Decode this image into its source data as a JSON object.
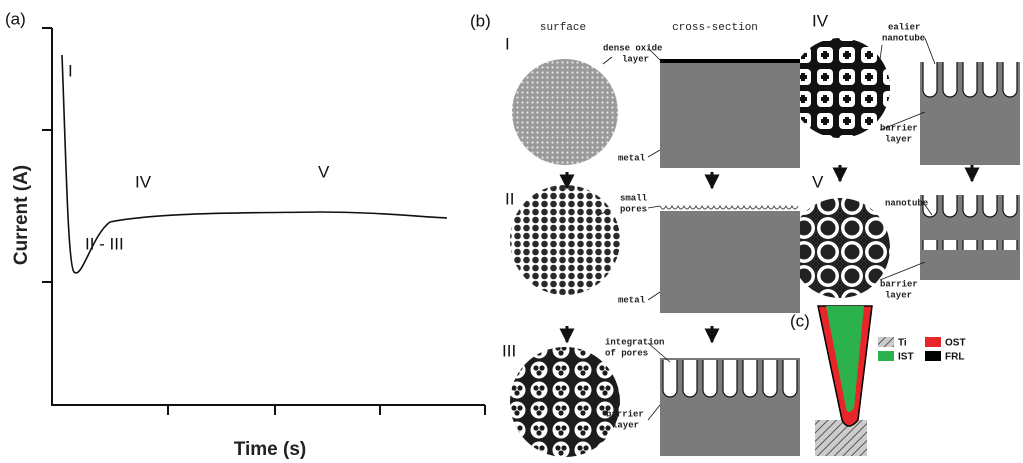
{
  "panel_a": {
    "label": "(a)",
    "y_axis_label": "Current (A)",
    "x_axis_label": "Time (s)",
    "stages": [
      "I",
      "IV",
      "V",
      "II - III"
    ]
  },
  "panel_b": {
    "label": "(b)",
    "column_headers": [
      "surface",
      "cross-section"
    ],
    "stages": [
      "I",
      "II",
      "III",
      "IV",
      "V"
    ],
    "annotations": [
      [
        "dense oxide",
        "layer"
      ],
      [
        "metal"
      ],
      [
        "small",
        "pores"
      ],
      [
        "metal"
      ],
      [
        "integration",
        "of pores"
      ],
      [
        "barrier",
        "layer"
      ],
      [
        "ealier",
        "nanotube"
      ],
      [
        "barrier",
        "layer"
      ],
      [
        "nanotube"
      ],
      [
        "barrier",
        "layer"
      ]
    ]
  },
  "panel_c": {
    "label": "(c)",
    "legend": [
      "Ti",
      "OST",
      "IST",
      "FRL"
    ]
  }
}
